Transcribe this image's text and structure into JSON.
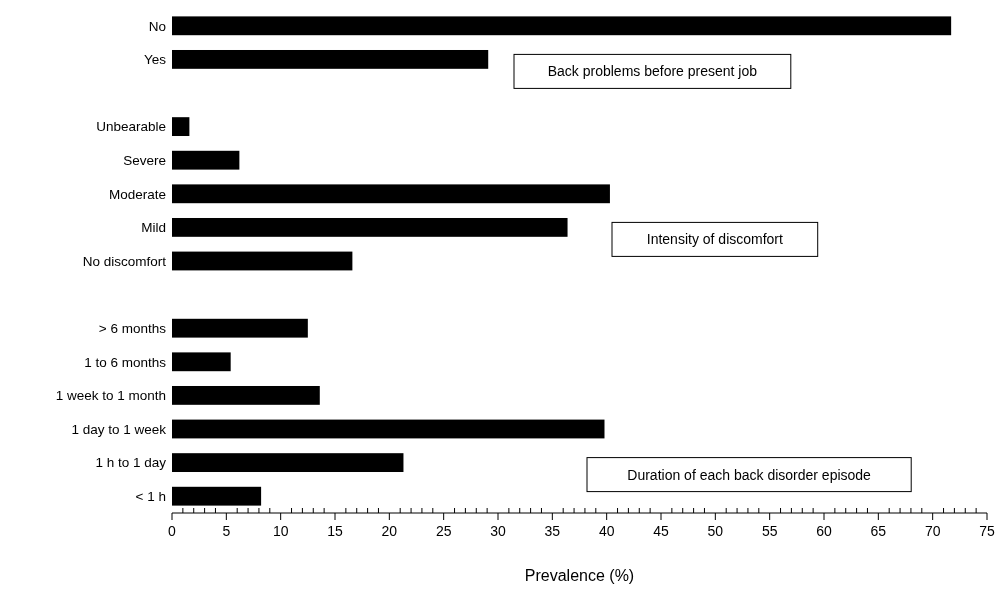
{
  "chart_data": {
    "type": "bar",
    "orientation": "horizontal",
    "xlabel": "Prevalence (%)",
    "categories": [
      "No",
      "Yes",
      null,
      "Unbearable",
      "Severe",
      "Moderate",
      "Mild",
      "No discomfort",
      null,
      "> 6 months",
      "1 to 6 months",
      "1 week to 1 month",
      "1 day to 1 week",
      "1 h to 1 day",
      "< 1 h"
    ],
    "values": [
      71.7,
      29.1,
      null,
      1.6,
      6.2,
      40.3,
      36.4,
      16.6,
      null,
      12.5,
      5.4,
      13.6,
      39.8,
      21.3,
      8.2
    ],
    "color": "#000000",
    "xlim": [
      0,
      75
    ],
    "xticks": [
      0,
      {
        "value": 1,
        "label": null
      },
      {
        "value": 2,
        "label": null
      },
      {
        "value": 3,
        "label": null
      },
      {
        "value": 4,
        "label": null
      },
      5,
      {
        "value": 6,
        "label": null
      },
      {
        "value": 7,
        "label": null
      },
      {
        "value": 8,
        "label": null
      },
      {
        "value": 9,
        "label": null
      },
      10,
      {
        "value": 11,
        "label": null
      },
      {
        "value": 12,
        "label": null
      },
      {
        "value": 13,
        "label": null
      },
      {
        "value": 14,
        "label": null
      },
      15,
      {
        "value": 16,
        "label": null
      },
      {
        "value": 17,
        "label": null
      },
      {
        "value": 18,
        "label": null
      },
      {
        "value": 19,
        "label": null
      },
      20,
      {
        "value": 21,
        "label": null
      },
      {
        "value": 22,
        "label": null
      },
      {
        "value": 23,
        "label": null
      },
      {
        "value": 24,
        "label": null
      },
      25,
      {
        "value": 26,
        "label": null
      },
      {
        "value": 27,
        "label": null
      },
      {
        "value": 28,
        "label": null
      },
      {
        "value": 29,
        "label": null
      },
      30,
      {
        "value": 31,
        "label": null
      },
      {
        "value": 32,
        "label": null
      },
      {
        "value": 33,
        "label": null
      },
      {
        "value": 34,
        "label": null
      },
      35,
      {
        "value": 36,
        "label": null
      },
      {
        "value": 37,
        "label": null
      },
      {
        "value": 38,
        "label": null
      },
      {
        "value": 39,
        "label": null
      },
      40,
      {
        "value": 41,
        "label": null
      },
      {
        "value": 42,
        "label": null
      },
      {
        "value": 43,
        "label": null
      },
      {
        "value": 44,
        "label": null
      },
      45,
      {
        "value": 46,
        "label": null
      },
      {
        "value": 47,
        "label": null
      },
      {
        "value": 48,
        "label": null
      },
      {
        "value": 49,
        "label": null
      },
      50,
      {
        "value": 51,
        "label": null
      },
      {
        "value": 52,
        "label": null
      },
      {
        "value": 53,
        "label": null
      },
      {
        "value": 54,
        "label": null
      },
      55,
      {
        "value": 56,
        "label": null
      },
      {
        "value": 57,
        "label": null
      },
      {
        "value": 58,
        "label": null
      },
      {
        "value": 59,
        "label": null
      },
      60,
      {
        "value": 61,
        "label": null
      },
      {
        "value": 62,
        "label": null
      },
      {
        "value": 63,
        "label": null
      },
      {
        "value": 64,
        "label": null
      },
      65,
      {
        "value": 66,
        "label": null
      },
      {
        "value": 67,
        "label": null
      },
      {
        "value": 68,
        "label": null
      },
      {
        "value": 69,
        "label": null
      },
      70,
      {
        "value": 71,
        "label": null
      },
      {
        "value": 72,
        "label": null
      },
      {
        "value": 73,
        "label": null
      },
      {
        "value": 74,
        "label": null
      },
      75
    ],
    "annotations": [
      "Back problems before present job",
      "Intensity of discomfort",
      "Duration of each back disorder episode"
    ],
    "grid": false
  }
}
